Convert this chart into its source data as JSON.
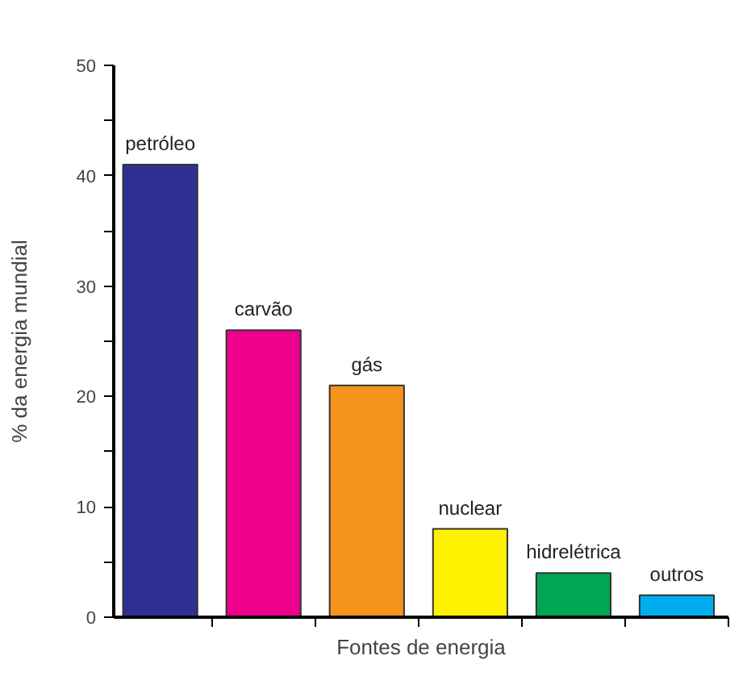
{
  "chart_data": {
    "type": "bar",
    "xlabel": "Fontes de energia",
    "ylabel": "% da energia mundial",
    "categories": [
      "petróleo",
      "carvão",
      "gás",
      "nuclear",
      "hidrelétrica",
      "outros"
    ],
    "values": [
      41,
      26,
      21,
      8,
      4,
      2
    ],
    "colors": [
      "#2e3192",
      "#ec008c",
      "#f7941d",
      "#fff200",
      "#00a651",
      "#00aeef"
    ],
    "ylim": [
      0,
      50
    ],
    "yticks": [
      0,
      {
        "value": 5,
        "label": null
      },
      10,
      {
        "value": 15,
        "label": null
      },
      20,
      {
        "value": 25,
        "label": null
      },
      30,
      {
        "value": 35,
        "label": null
      },
      40,
      {
        "value": 45,
        "label": null
      },
      50
    ],
    "tick_labels": "y",
    "grid": false
  }
}
